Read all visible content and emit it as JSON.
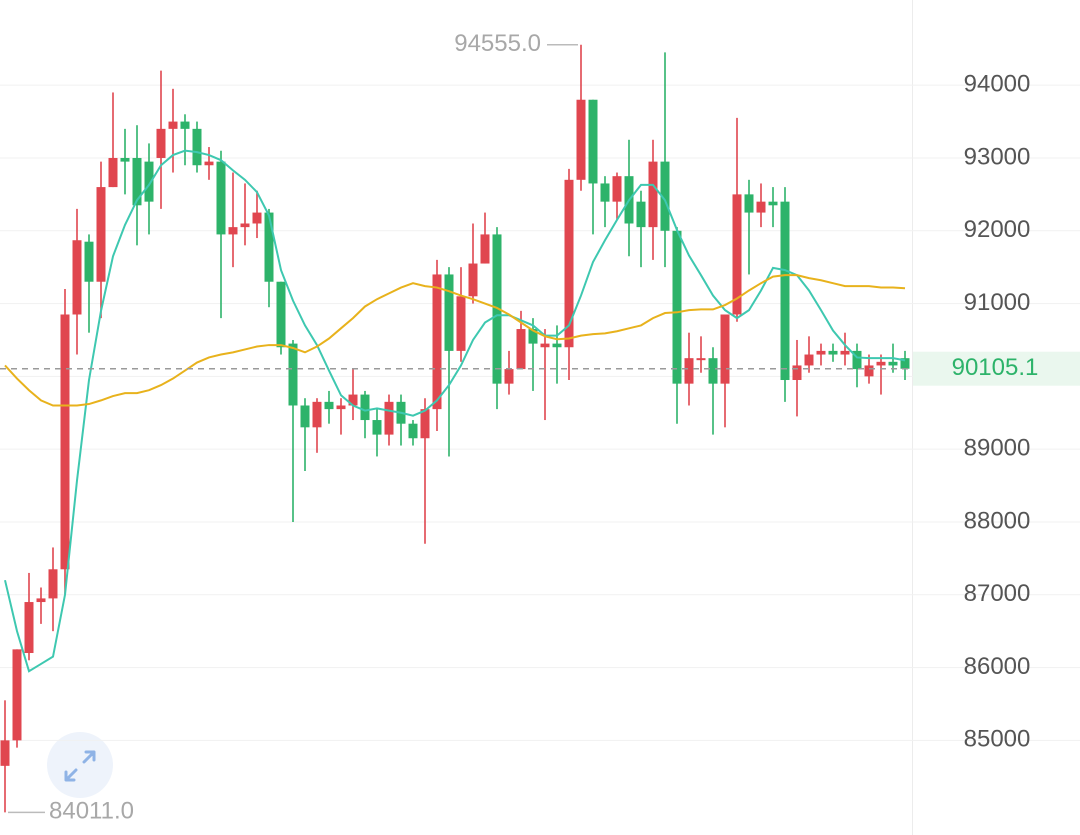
{
  "chart_data": {
    "type": "candlestick",
    "open": [
      84650,
      85000,
      86200,
      86900,
      86950,
      87350,
      90850,
      91850,
      91300,
      92600,
      93000,
      93000,
      92950,
      93000,
      93400,
      93500,
      93400,
      92900,
      92950,
      91950,
      92050,
      92100,
      92250,
      91300,
      90450,
      89600,
      89300,
      89650,
      89550,
      89600,
      89750,
      89400,
      89200,
      89650,
      89350,
      89150,
      89550,
      91400,
      90350,
      91100,
      91550,
      91950,
      89900,
      90100,
      90650,
      90400,
      90450,
      90400,
      92700,
      93800,
      92650,
      92400,
      92750,
      92400,
      92050,
      92950,
      92000,
      89900,
      90250,
      90250,
      89900,
      90850,
      92500,
      92250,
      92400,
      92400,
      89950,
      90150,
      90300,
      90350,
      90300,
      90350,
      90000,
      90150,
      90200,
      90250
    ],
    "high": [
      85550,
      86250,
      87300,
      87100,
      87650,
      91200,
      92300,
      91950,
      92950,
      93900,
      93400,
      93450,
      93200,
      94200,
      93950,
      93600,
      93500,
      93150,
      93100,
      92800,
      92650,
      92550,
      92300,
      91300,
      90500,
      89700,
      89700,
      89800,
      89700,
      90100,
      89800,
      89550,
      89750,
      89750,
      89400,
      89700,
      91600,
      91500,
      91500,
      92100,
      92250,
      92050,
      90350,
      90900,
      90800,
      90650,
      90700,
      92850,
      94555,
      93800,
      92750,
      92800,
      93250,
      92550,
      93250,
      94450,
      92050,
      90600,
      90550,
      90400,
      90850,
      93550,
      92700,
      92650,
      92600,
      92600,
      90500,
      90550,
      90450,
      90450,
      90600,
      90450,
      90300,
      90300,
      90450,
      90350
    ],
    "low": [
      84011,
      84900,
      86100,
      86600,
      86500,
      87000,
      90300,
      90600,
      90800,
      92600,
      92500,
      91800,
      91950,
      92300,
      92800,
      92900,
      92800,
      92700,
      90800,
      91500,
      91800,
      91900,
      90950,
      90300,
      88000,
      88700,
      88950,
      89350,
      89200,
      89400,
      89150,
      88900,
      89050,
      89050,
      89050,
      87700,
      89250,
      88900,
      90200,
      91000,
      91550,
      89550,
      89750,
      90100,
      89800,
      89400,
      89900,
      89950,
      92550,
      91950,
      92050,
      92150,
      91650,
      91500,
      91600,
      91500,
      89350,
      89600,
      90050,
      89200,
      89300,
      90750,
      91400,
      92050,
      92050,
      89650,
      89450,
      90050,
      90150,
      90200,
      90150,
      89850,
      89900,
      89750,
      90050,
      89950
    ],
    "close": [
      85000,
      86250,
      86900,
      86950,
      87350,
      90850,
      91870,
      91300,
      92600,
      93000,
      92950,
      92350,
      92400,
      93400,
      93500,
      93400,
      92900,
      92950,
      91950,
      92050,
      92100,
      92250,
      91300,
      90400,
      89600,
      89300,
      89650,
      89550,
      89600,
      89750,
      89400,
      89200,
      89650,
      89350,
      89150,
      89550,
      91400,
      90350,
      91100,
      91550,
      91950,
      89900,
      90100,
      90650,
      90450,
      90450,
      90400,
      92700,
      93800,
      92650,
      92400,
      92750,
      92100,
      92050,
      92950,
      92000,
      89900,
      90250,
      90250,
      89900,
      90850,
      92500,
      92250,
      92400,
      92350,
      89950,
      90150,
      90300,
      90350,
      90300,
      90350,
      90100,
      90150,
      90200,
      90150,
      90105.1
    ],
    "up_color": "#e0464f",
    "down_color": "#2db36a",
    "series": [
      {
        "color": "#3ec8b0",
        "values": [
          87200,
          86500,
          85950,
          86050,
          86150,
          87000,
          88570,
          89950,
          90900,
          91650,
          92080,
          92420,
          92630,
          92900,
          93040,
          93100,
          93080,
          93040,
          92970,
          92830,
          92700,
          92530,
          92210,
          91460,
          91040,
          90700,
          90430,
          90080,
          89740,
          89600,
          89530,
          89560,
          89530,
          89500,
          89460,
          89530,
          89670,
          89880,
          90150,
          90500,
          90740,
          90840,
          90840,
          90770,
          90700,
          90560,
          90560,
          90700,
          91110,
          91570,
          91870,
          92150,
          92420,
          92630,
          92630,
          92420,
          92010,
          91660,
          91390,
          91110,
          90910,
          90800,
          90910,
          91180,
          91490,
          91460,
          91390,
          91180,
          90910,
          90630,
          90430,
          90260,
          90250,
          90250,
          90250,
          90220
        ]
      },
      {
        "color": "#e8b21c",
        "values": [
          90150,
          89970,
          89810,
          89670,
          89600,
          89600,
          89600,
          89620,
          89670,
          89730,
          89770,
          89770,
          89810,
          89880,
          89970,
          90080,
          90190,
          90260,
          90300,
          90330,
          90370,
          90410,
          90430,
          90430,
          90390,
          90330,
          90410,
          90520,
          90660,
          90800,
          90960,
          91060,
          91140,
          91220,
          91280,
          91240,
          91220,
          91170,
          91110,
          91060,
          91000,
          90940,
          90850,
          90740,
          90630,
          90550,
          90510,
          90520,
          90560,
          90580,
          90590,
          90620,
          90660,
          90700,
          90800,
          90870,
          90880,
          90910,
          90920,
          90920,
          90980,
          91070,
          91180,
          91280,
          91370,
          91390,
          91390,
          91350,
          91320,
          91280,
          91240,
          91240,
          91240,
          91220,
          91220,
          91210
        ]
      }
    ],
    "ylim": [
      83700,
      95170
    ],
    "yticks": [
      85000,
      86000,
      87000,
      88000,
      89000,
      90000,
      91000,
      92000,
      93000,
      94000
    ],
    "grid": true,
    "last_price": 90105.1,
    "annotations": [
      {
        "text": "94555.0"
      },
      {
        "text": "84011.0"
      }
    ]
  }
}
